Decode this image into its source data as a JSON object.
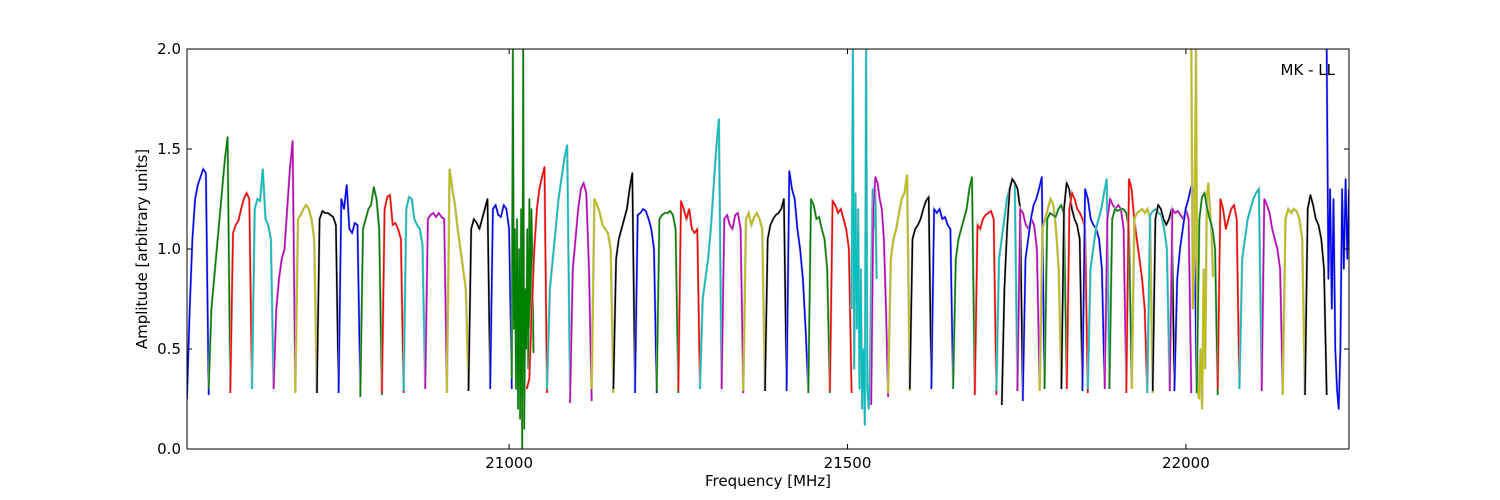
{
  "chart_data": {
    "type": "line",
    "xlabel": "Frequency [MHz]",
    "ylabel": "Amplitude [arbitrary units]",
    "annotation": "MK - LL",
    "xlim": [
      20524,
      22241
    ],
    "ylim": [
      0.0,
      2.0
    ],
    "xticks": [
      "21000",
      "21500",
      "22000"
    ],
    "xtick_values": [
      21000,
      21500,
      22000
    ],
    "yticks": [
      "0.0",
      "0.5",
      "1.0",
      "1.5",
      "2.0"
    ],
    "ytick_values": [
      0.0,
      0.5,
      1.0,
      1.5,
      2.0
    ],
    "grid": false,
    "colors": {
      "b": "#0000ff",
      "g": "#008000",
      "r": "#ff0000",
      "c": "#00bfbf",
      "m": "#bf00bf",
      "y": "#bfbf00",
      "k": "#000000"
    },
    "series": [
      {
        "color": "b",
        "start": 20524,
        "end": 20556,
        "values": [
          0.25,
          0.7,
          1.05,
          1.25,
          1.32,
          1.36,
          1.4,
          1.38,
          0.27
        ]
      },
      {
        "color": "g",
        "start": 20556,
        "end": 20588,
        "values": [
          0.3,
          0.7,
          0.85,
          1.0,
          1.15,
          1.3,
          1.45,
          1.56,
          0.3
        ]
      },
      {
        "color": "r",
        "start": 20588,
        "end": 20620,
        "values": [
          0.28,
          1.08,
          1.12,
          1.14,
          1.2,
          1.25,
          1.28,
          1.25,
          0.3
        ]
      },
      {
        "color": "c",
        "start": 20620,
        "end": 20652,
        "values": [
          0.3,
          1.2,
          1.25,
          1.24,
          1.4,
          1.15,
          1.12,
          1.05,
          0.3
        ]
      },
      {
        "color": "m",
        "start": 20652,
        "end": 20684,
        "values": [
          0.3,
          0.7,
          0.85,
          0.95,
          1.0,
          1.2,
          1.4,
          1.54,
          0.3
        ]
      },
      {
        "color": "y",
        "start": 20684,
        "end": 20716,
        "values": [
          0.28,
          1.15,
          1.17,
          1.2,
          1.22,
          1.2,
          1.15,
          1.05,
          0.28
        ]
      },
      {
        "color": "k",
        "start": 20716,
        "end": 20748,
        "values": [
          0.28,
          1.15,
          1.19,
          1.18,
          1.18,
          1.17,
          1.16,
          1.12,
          0.28
        ]
      },
      {
        "color": "b",
        "start": 20748,
        "end": 20780,
        "values": [
          0.28,
          1.25,
          1.2,
          1.32,
          1.1,
          1.08,
          1.13,
          1.12,
          0.28
        ]
      },
      {
        "color": "g",
        "start": 20780,
        "end": 20812,
        "values": [
          0.26,
          1.1,
          1.15,
          1.2,
          1.22,
          1.31,
          1.25,
          1.1,
          0.27
        ]
      },
      {
        "color": "r",
        "start": 20812,
        "end": 20844,
        "values": [
          0.28,
          1.2,
          1.26,
          1.27,
          1.12,
          1.13,
          1.1,
          1.05,
          0.28
        ]
      },
      {
        "color": "c",
        "start": 20844,
        "end": 20876,
        "values": [
          0.29,
          1.2,
          1.26,
          1.25,
          1.15,
          1.12,
          1.1,
          1.02,
          0.3
        ]
      },
      {
        "color": "m",
        "start": 20876,
        "end": 20908,
        "values": [
          0.3,
          1.15,
          1.17,
          1.18,
          1.16,
          1.18,
          1.16,
          1.15,
          0.3
        ]
      },
      {
        "color": "y",
        "start": 20908,
        "end": 20940,
        "values": [
          0.28,
          1.4,
          1.3,
          1.22,
          1.1,
          1.0,
          0.9,
          0.8,
          0.31
        ]
      },
      {
        "color": "k",
        "start": 20940,
        "end": 20972,
        "values": [
          0.29,
          1.1,
          1.15,
          1.13,
          1.1,
          1.15,
          1.2,
          1.25,
          0.3
        ]
      },
      {
        "color": "b",
        "start": 20972,
        "end": 21004,
        "values": [
          0.3,
          1.2,
          1.22,
          1.17,
          1.16,
          1.22,
          1.2,
          1.1,
          0.3
        ]
      },
      {
        "color": "g",
        "start": 21004,
        "end": 21036,
        "values": [
          0.35,
          2.0,
          0.6,
          1.1,
          0.3,
          1.15,
          0.2,
          1.0,
          0.15,
          1.2,
          0.0,
          2.0,
          0.1,
          0.8,
          0.5,
          1.1,
          0.4,
          1.25,
          0.6,
          1.2,
          0.9,
          0.48
        ]
      },
      {
        "color": "r",
        "start": 21026,
        "end": 21056,
        "values": [
          0.3,
          0.35,
          0.7,
          1.0,
          1.2,
          1.3,
          1.36,
          1.41,
          0.28
        ]
      },
      {
        "color": "c",
        "start": 21056,
        "end": 21090,
        "values": [
          0.3,
          0.8,
          0.95,
          1.1,
          1.25,
          1.35,
          1.45,
          1.52,
          0.3
        ]
      },
      {
        "color": "m",
        "start": 21090,
        "end": 21122,
        "values": [
          0.23,
          0.9,
          1.05,
          1.2,
          1.3,
          1.33,
          1.28,
          0.9,
          0.24
        ]
      },
      {
        "color": "y",
        "start": 21122,
        "end": 21154,
        "values": [
          0.3,
          1.25,
          1.22,
          1.18,
          1.12,
          1.1,
          1.08,
          1.0,
          0.28
        ]
      },
      {
        "color": "k",
        "start": 21154,
        "end": 21186,
        "values": [
          0.3,
          0.95,
          1.05,
          1.1,
          1.15,
          1.2,
          1.3,
          1.38,
          0.29
        ]
      },
      {
        "color": "b",
        "start": 21186,
        "end": 21218,
        "values": [
          0.28,
          1.17,
          1.18,
          1.2,
          1.19,
          1.15,
          1.1,
          1.0,
          0.28
        ]
      },
      {
        "color": "g",
        "start": 21218,
        "end": 21250,
        "values": [
          0.29,
          1.15,
          1.17,
          1.18,
          1.18,
          1.19,
          1.17,
          1.1,
          0.28
        ]
      },
      {
        "color": "r",
        "start": 21250,
        "end": 21282,
        "values": [
          0.29,
          1.24,
          1.2,
          1.15,
          1.2,
          1.1,
          1.08,
          1.1,
          0.3
        ]
      },
      {
        "color": "c",
        "start": 21282,
        "end": 21314,
        "values": [
          0.3,
          0.75,
          0.85,
          0.95,
          1.1,
          1.3,
          1.5,
          1.65,
          0.3
        ]
      },
      {
        "color": "m",
        "start": 21314,
        "end": 21346,
        "values": [
          0.3,
          1.15,
          1.17,
          1.12,
          1.1,
          1.17,
          1.18,
          1.1,
          0.28
        ]
      },
      {
        "color": "y",
        "start": 21346,
        "end": 21378,
        "values": [
          0.29,
          1.15,
          1.18,
          1.12,
          1.16,
          1.18,
          1.15,
          1.1,
          0.3
        ]
      },
      {
        "color": "k",
        "start": 21378,
        "end": 21410,
        "values": [
          0.29,
          1.05,
          1.12,
          1.15,
          1.17,
          1.18,
          1.2,
          1.25,
          0.3
        ]
      },
      {
        "color": "b",
        "start": 21410,
        "end": 21442,
        "values": [
          0.29,
          1.39,
          1.3,
          1.25,
          1.1,
          1.0,
          0.85,
          0.6,
          0.29
        ]
      },
      {
        "color": "g",
        "start": 21442,
        "end": 21474,
        "values": [
          0.28,
          1.25,
          1.22,
          1.15,
          1.16,
          1.1,
          1.05,
          0.9,
          0.28
        ]
      },
      {
        "color": "r",
        "start": 21474,
        "end": 21506,
        "values": [
          0.29,
          1.24,
          1.22,
          1.18,
          1.2,
          1.15,
          1.1,
          1.0,
          0.28
        ]
      },
      {
        "color": "c",
        "start": 21506,
        "end": 21543,
        "values": [
          0.7,
          2.0,
          0.4,
          1.28,
          0.6,
          1.2,
          0.3,
          0.9,
          0.2,
          0.5,
          0.12,
          2.0,
          0.3,
          0.2,
          0.4,
          0.9,
          1.3,
          1.1,
          1.3,
          0.85
        ]
      },
      {
        "color": "m",
        "start": 21535,
        "end": 21560,
        "values": [
          0.22,
          1.2,
          1.36,
          1.33,
          1.25,
          1.2,
          1.05,
          0.7,
          0.26
        ]
      },
      {
        "color": "y",
        "start": 21560,
        "end": 21592,
        "values": [
          0.28,
          0.95,
          1.05,
          1.1,
          1.18,
          1.25,
          1.28,
          1.37,
          0.29
        ]
      },
      {
        "color": "k",
        "start": 21592,
        "end": 21624,
        "values": [
          0.3,
          1.05,
          1.1,
          1.12,
          1.15,
          1.2,
          1.24,
          1.26,
          0.3
        ]
      },
      {
        "color": "b",
        "start": 21624,
        "end": 21656,
        "values": [
          0.3,
          1.2,
          1.18,
          1.2,
          1.15,
          1.16,
          1.12,
          1.1,
          0.3
        ]
      },
      {
        "color": "g",
        "start": 21656,
        "end": 21688,
        "values": [
          0.3,
          0.95,
          1.05,
          1.1,
          1.15,
          1.2,
          1.3,
          1.36,
          0.27
        ]
      },
      {
        "color": "r",
        "start": 21688,
        "end": 21720,
        "values": [
          0.27,
          1.12,
          1.1,
          1.15,
          1.17,
          1.18,
          1.19,
          1.15,
          0.27
        ]
      },
      {
        "color": "c",
        "start": 21720,
        "end": 21751,
        "values": [
          0.29,
          0.95,
          1.05,
          1.15,
          1.25,
          1.3,
          1.35,
          1.33,
          0.29
        ]
      },
      {
        "color": "k",
        "start": 21728,
        "end": 21759,
        "values": [
          0.22,
          0.8,
          1.1,
          1.3,
          1.35,
          1.33,
          1.3,
          1.2,
          0.24
        ]
      },
      {
        "color": "m",
        "start": 21751,
        "end": 21784,
        "values": [
          0.29,
          1.2,
          1.18,
          1.12,
          1.1,
          1.15,
          1.12,
          1.0,
          0.3
        ]
      },
      {
        "color": "b",
        "start": 21759,
        "end": 21791,
        "values": [
          0.24,
          0.95,
          1.05,
          1.15,
          1.22,
          1.25,
          1.3,
          1.36,
          0.3
        ]
      },
      {
        "color": "y",
        "start": 21784,
        "end": 21816,
        "values": [
          0.29,
          1.1,
          1.15,
          1.2,
          1.25,
          1.22,
          1.1,
          0.9,
          0.3
        ]
      },
      {
        "color": "g",
        "start": 21791,
        "end": 21824,
        "values": [
          0.3,
          1.15,
          1.18,
          1.17,
          1.16,
          1.2,
          1.22,
          1.17,
          0.3
        ]
      },
      {
        "color": "k",
        "start": 21816,
        "end": 21847,
        "values": [
          0.3,
          1.2,
          1.33,
          1.3,
          1.2,
          1.15,
          1.12,
          1.05,
          0.3
        ]
      },
      {
        "color": "r",
        "start": 21824,
        "end": 21855,
        "values": [
          0.3,
          1.2,
          1.28,
          1.25,
          1.2,
          1.18,
          1.15,
          1.1,
          0.28
        ]
      },
      {
        "color": "b",
        "start": 21847,
        "end": 21880,
        "values": [
          0.29,
          1.3,
          1.25,
          1.15,
          1.12,
          1.1,
          1.05,
          0.9,
          0.3
        ]
      },
      {
        "color": "c",
        "start": 21855,
        "end": 21887,
        "values": [
          0.3,
          0.9,
          1.0,
          1.1,
          1.15,
          1.2,
          1.28,
          1.35,
          0.3
        ]
      },
      {
        "color": "m",
        "start": 21880,
        "end": 21912,
        "values": [
          0.3,
          1.15,
          1.25,
          1.22,
          1.2,
          1.22,
          1.2,
          1.1,
          0.3
        ]
      },
      {
        "color": "g",
        "start": 21887,
        "end": 21920,
        "values": [
          0.3,
          1.15,
          1.2,
          1.19,
          1.2,
          1.2,
          1.18,
          1.1,
          0.3
        ]
      },
      {
        "color": "r",
        "start": 21912,
        "end": 21943,
        "values": [
          0.28,
          1.35,
          1.3,
          1.15,
          1.05,
          0.95,
          0.85,
          0.7,
          0.28
        ]
      },
      {
        "color": "y",
        "start": 21920,
        "end": 21951,
        "values": [
          0.3,
          1.15,
          1.18,
          1.19,
          1.2,
          1.18,
          1.2,
          1.15,
          0.28
        ]
      },
      {
        "color": "c",
        "start": 21943,
        "end": 21976,
        "values": [
          0.28,
          1.17,
          1.19,
          1.2,
          1.18,
          1.17,
          1.1,
          1.0,
          0.29
        ]
      },
      {
        "color": "k",
        "start": 21951,
        "end": 21983,
        "values": [
          0.29,
          1.15,
          1.22,
          1.2,
          1.15,
          1.12,
          1.15,
          1.2,
          0.29
        ]
      },
      {
        "color": "m",
        "start": 21976,
        "end": 22008,
        "values": [
          0.29,
          1.2,
          1.18,
          1.19,
          1.17,
          1.15,
          1.2,
          1.15,
          0.28
        ]
      },
      {
        "color": "b",
        "start": 21983,
        "end": 22016,
        "values": [
          0.29,
          0.85,
          1.0,
          1.1,
          1.2,
          1.25,
          1.31,
          1.3,
          0.28
        ]
      },
      {
        "color": "y",
        "start": 22008,
        "end": 22040,
        "values": [
          2.0,
          0.7,
          1.0,
          2.0,
          0.3,
          0.25,
          0.5,
          0.2,
          0.9,
          0.4,
          1.25,
          1.33,
          1.2,
          1.1,
          0.86
        ]
      },
      {
        "color": "g",
        "start": 22016,
        "end": 22047,
        "values": [
          0.28,
          1.15,
          1.26,
          1.28,
          1.2,
          1.15,
          1.1,
          1.0,
          0.27
        ]
      },
      {
        "color": "r",
        "start": 22047,
        "end": 22079,
        "values": [
          0.3,
          1.25,
          1.2,
          1.1,
          1.15,
          1.2,
          1.22,
          1.15,
          0.3
        ]
      },
      {
        "color": "c",
        "start": 22079,
        "end": 22112,
        "values": [
          0.3,
          0.95,
          1.05,
          1.15,
          1.2,
          1.25,
          1.28,
          1.3,
          0.3
        ]
      },
      {
        "color": "m",
        "start": 22112,
        "end": 22143,
        "values": [
          0.29,
          1.25,
          1.22,
          1.18,
          1.1,
          1.05,
          1.0,
          0.9,
          0.3
        ]
      },
      {
        "color": "y",
        "start": 22143,
        "end": 22176,
        "values": [
          0.27,
          1.15,
          1.2,
          1.18,
          1.2,
          1.19,
          1.15,
          1.05,
          0.27
        ]
      },
      {
        "color": "k",
        "start": 22176,
        "end": 22208,
        "values": [
          0.27,
          1.2,
          1.27,
          1.22,
          1.15,
          1.12,
          1.05,
          0.9,
          0.27
        ]
      },
      {
        "color": "b",
        "start": 22208,
        "end": 22241,
        "values": [
          2.0,
          0.85,
          1.3,
          0.7,
          1.25,
          0.5,
          0.3,
          0.2,
          0.5,
          1.3,
          0.9,
          1.35,
          0.95,
          1.3
        ]
      }
    ]
  }
}
